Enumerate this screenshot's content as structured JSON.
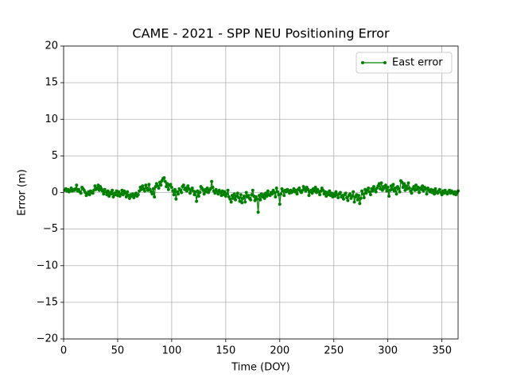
{
  "chart_data": {
    "type": "line",
    "title": "CAME - 2021 - SPP NEU Positioning Error",
    "xlabel": "Time (DOY)",
    "ylabel": "Error (m)",
    "xlim": [
      0,
      365
    ],
    "ylim": [
      -20,
      20
    ],
    "xticks": [
      0,
      50,
      100,
      150,
      200,
      250,
      300,
      350
    ],
    "yticks": [
      {
        "value": -20,
        "label": "−20"
      },
      {
        "value": -15,
        "label": "−15"
      },
      {
        "value": -10,
        "label": "−10"
      },
      {
        "value": -5,
        "label": "−5"
      },
      0,
      5,
      10,
      15,
      20
    ],
    "grid": true,
    "legend": "upper right",
    "x": [
      1,
      2,
      3,
      4,
      5,
      6,
      7,
      8,
      9,
      10,
      11,
      12,
      13,
      14,
      15,
      16,
      17,
      18,
      19,
      20,
      21,
      22,
      23,
      24,
      25,
      26,
      27,
      28,
      29,
      30,
      31,
      32,
      33,
      34,
      35,
      36,
      37,
      38,
      39,
      40,
      41,
      42,
      43,
      44,
      45,
      46,
      47,
      48,
      49,
      50,
      51,
      52,
      53,
      54,
      55,
      56,
      57,
      58,
      59,
      60,
      61,
      62,
      63,
      64,
      65,
      66,
      67,
      68,
      69,
      70,
      71,
      72,
      73,
      74,
      75,
      76,
      77,
      78,
      79,
      80,
      81,
      82,
      83,
      84,
      85,
      86,
      87,
      88,
      89,
      90,
      91,
      92,
      93,
      94,
      95,
      96,
      97,
      98,
      99,
      100,
      101,
      102,
      103,
      104,
      105,
      106,
      107,
      108,
      109,
      110,
      111,
      112,
      113,
      114,
      115,
      116,
      117,
      118,
      119,
      120,
      121,
      122,
      123,
      124,
      125,
      126,
      127,
      128,
      129,
      130,
      131,
      132,
      133,
      134,
      135,
      136,
      137,
      138,
      139,
      140,
      141,
      142,
      143,
      144,
      145,
      146,
      147,
      148,
      149,
      150,
      151,
      152,
      153,
      154,
      155,
      156,
      157,
      158,
      159,
      160,
      161,
      162,
      163,
      164,
      165,
      166,
      167,
      168,
      169,
      170,
      171,
      172,
      173,
      174,
      175,
      176,
      177,
      178,
      179,
      180,
      181,
      182,
      183,
      184,
      185,
      186,
      187,
      188,
      189,
      190,
      191,
      192,
      193,
      194,
      195,
      196,
      197,
      198,
      199,
      200,
      201,
      202,
      203,
      204,
      205,
      206,
      207,
      208,
      209,
      210,
      211,
      212,
      213,
      214,
      215,
      216,
      217,
      218,
      219,
      220,
      221,
      222,
      223,
      224,
      225,
      226,
      227,
      228,
      229,
      230,
      231,
      232,
      233,
      234,
      235,
      236,
      237,
      238,
      239,
      240,
      241,
      242,
      243,
      244,
      245,
      246,
      247,
      248,
      249,
      250,
      251,
      252,
      253,
      254,
      255,
      256,
      257,
      258,
      259,
      260,
      261,
      262,
      263,
      264,
      265,
      266,
      267,
      268,
      269,
      270,
      271,
      272,
      273,
      274,
      275,
      276,
      277,
      278,
      279,
      280,
      281,
      282,
      283,
      284,
      285,
      286,
      287,
      288,
      289,
      290,
      291,
      292,
      293,
      294,
      295,
      296,
      297,
      298,
      299,
      300,
      301,
      302,
      303,
      304,
      305,
      306,
      307,
      308,
      309,
      310,
      311,
      312,
      313,
      314,
      315,
      316,
      317,
      318,
      319,
      320,
      321,
      322,
      323,
      324,
      325,
      326,
      327,
      328,
      329,
      330,
      331,
      332,
      333,
      334,
      335,
      336,
      337,
      338,
      339,
      340,
      341,
      342,
      343,
      344,
      345,
      346,
      347,
      348,
      349,
      350,
      351,
      352,
      353,
      354,
      355,
      356,
      357,
      358,
      359,
      360,
      361,
      362,
      363,
      364,
      365
    ],
    "series": [
      {
        "name": "East error",
        "color": "#008000",
        "values": [
          0.3,
          0.5,
          0.2,
          0.4,
          0.1,
          0.3,
          0.6,
          0.2,
          0.4,
          0.3,
          0.5,
          1.0,
          0.2,
          0.4,
          0.1,
          -0.1,
          0.7,
          0.5,
          0.3,
          0.0,
          -0.4,
          -0.2,
          0.1,
          -0.3,
          0.2,
          0.0,
          -0.1,
          0.3,
          0.9,
          0.4,
          0.6,
          1.0,
          0.3,
          0.8,
          0.5,
          0.2,
          -0.2,
          0.4,
          0.1,
          -0.3,
          0.2,
          -0.5,
          0.0,
          -0.2,
          0.3,
          -0.6,
          -0.1,
          -0.3,
          0.2,
          -0.4,
          0.1,
          -0.5,
          -0.2,
          0.3,
          -0.3,
          0.2,
          -0.1,
          -0.6,
          0.1,
          -0.4,
          -0.8,
          -0.3,
          -0.5,
          -0.2,
          -0.7,
          -0.4,
          -0.1,
          -0.5,
          -0.3,
          0.2,
          0.7,
          0.4,
          0.9,
          0.5,
          0.2,
          1.0,
          0.6,
          0.3,
          1.1,
          0.4,
          0.1,
          -0.2,
          0.5,
          -0.6,
          0.8,
          1.2,
          0.9,
          0.6,
          1.4,
          1.0,
          1.6,
          1.9,
          2.0,
          1.5,
          0.8,
          1.2,
          0.4,
          1.0,
          1.1,
          0.7,
          0.2,
          -0.3,
          0.4,
          -0.9,
          0.1,
          -0.2,
          0.5,
          0.3,
          0.0,
          0.8,
          1.0,
          0.4,
          0.6,
          0.2,
          0.9,
          0.5,
          -0.1,
          0.3,
          0.6,
          0.2,
          -0.3,
          0.1,
          -1.2,
          0.2,
          -0.5,
          0.0,
          0.8,
          0.6,
          0.3,
          -0.2,
          0.4,
          0.1,
          0.6,
          0.0,
          0.3,
          0.5,
          1.5,
          0.7,
          0.2,
          -0.1,
          0.4,
          0.1,
          -0.2,
          0.3,
          0.0,
          -0.4,
          0.2,
          -0.3,
          0.1,
          -0.5,
          -0.2,
          0.3,
          -0.6,
          -0.9,
          -1.3,
          -0.4,
          -0.8,
          -0.2,
          -1.0,
          -0.5,
          -0.1,
          -0.7,
          -1.2,
          -0.3,
          -1.4,
          -0.8,
          -0.5,
          -1.3,
          0.0,
          -0.6,
          -0.4,
          -0.8,
          -1.0,
          -0.3,
          0.3,
          -0.5,
          -1.1,
          -0.6,
          -0.9,
          -2.7,
          -0.4,
          -1.0,
          -0.2,
          -0.6,
          -0.3,
          -0.8,
          -0.1,
          -0.5,
          0.2,
          -0.3,
          -0.4,
          0.0,
          -0.2,
          0.3,
          0.0,
          -0.6,
          0.6,
          0.1,
          -0.3,
          -1.6,
          -0.2,
          0.5,
          0.2,
          -0.4,
          0.3,
          0.1,
          0.4,
          0.2,
          -0.1,
          0.3,
          0.0,
          0.2,
          0.5,
          0.1,
          0.3,
          -0.2,
          0.4,
          0.6,
          0.2,
          0.0,
          0.3,
          0.8,
          0.5,
          0.2,
          0.7,
          0.4,
          -0.4,
          0.1,
          0.3,
          -0.1,
          0.5,
          0.2,
          0.7,
          0.0,
          0.4,
          0.1,
          -0.3,
          0.2,
          0.6,
          0.3,
          -0.2,
          0.1,
          -0.5,
          0.0,
          -0.3,
          0.2,
          -0.4,
          -0.1,
          -0.6,
          -0.2,
          -0.5,
          0.1,
          -0.3,
          -0.7,
          -0.2,
          0.0,
          -0.6,
          -0.4,
          -0.9,
          -0.3,
          -0.1,
          -0.7,
          -1.1,
          -0.4,
          -0.2,
          -0.8,
          -0.5,
          0.1,
          -1.3,
          -0.6,
          -0.3,
          -1.0,
          -0.4,
          -1.5,
          -0.8,
          0.2,
          -0.2,
          -0.7,
          0.4,
          -0.1,
          0.3,
          0.6,
          0.1,
          -0.3,
          0.5,
          0.2,
          0.8,
          0.4,
          0.1,
          0.6,
          0.9,
          1.2,
          0.5,
          1.3,
          0.3,
          0.8,
          0.6,
          1.0,
          0.2,
          0.7,
          -0.5,
          0.3,
          0.9,
          0.4,
          1.1,
          0.2,
          0.6,
          -0.2,
          0.8,
          0.5,
          0.1,
          1.6,
          1.4,
          0.7,
          1.2,
          0.3,
          0.9,
          0.5,
          1.3,
          0.6,
          0.2,
          -0.1,
          0.5,
          0.8,
          0.3,
          1.0,
          0.4,
          0.7,
          0.0,
          0.6,
          0.4,
          0.9,
          0.2,
          0.7,
          0.5,
          -0.2,
          0.6,
          0.3,
          0.1,
          0.4,
          0.0,
          0.3,
          -0.2,
          0.5,
          0.1,
          -0.1,
          0.2,
          0.4,
          0.0,
          -0.3,
          0.2,
          -0.1,
          0.3,
          0.0,
          -0.2,
          0.1,
          0.3,
          -0.1,
          0.2,
          0.0,
          -0.2,
          0.1,
          -0.3,
          0.0,
          0.2
        ]
      }
    ]
  }
}
